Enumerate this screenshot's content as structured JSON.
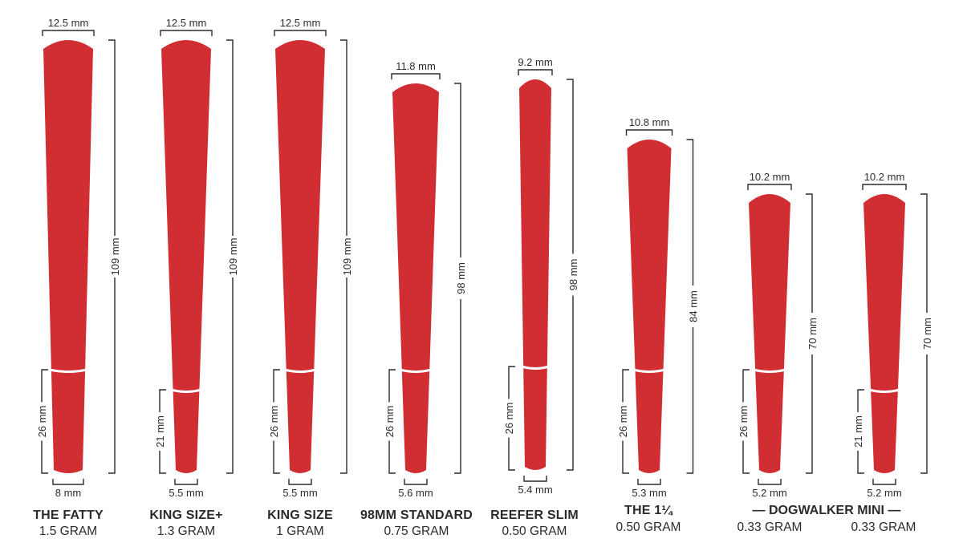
{
  "cones": [
    {
      "id": "fatty",
      "name": "THE FATTY",
      "weight": "1.5 GRAM",
      "top_diameter": "12.5 mm",
      "length": "109 mm",
      "filter_length": "26 mm",
      "tip_diameter": "8 mm"
    },
    {
      "id": "king-plus",
      "name": "KING SIZE+",
      "weight": "1.3 GRAM",
      "top_diameter": "12.5 mm",
      "length": "109 mm",
      "filter_length": "21 mm",
      "tip_diameter": "5.5 mm"
    },
    {
      "id": "king",
      "name": "KING SIZE",
      "weight": "1 GRAM",
      "top_diameter": "12.5 mm",
      "length": "109 mm",
      "filter_length": "26 mm",
      "tip_diameter": "5.5 mm"
    },
    {
      "id": "98mm",
      "name": "98MM STANDARD",
      "weight": "0.75 GRAM",
      "top_diameter": "11.8 mm",
      "length": "98 mm",
      "filter_length": "26 mm",
      "tip_diameter": "5.6 mm"
    },
    {
      "id": "reefer",
      "name": "REEFER SLIM",
      "weight": "0.50 GRAM",
      "top_diameter": "9.2 mm",
      "length": "98 mm",
      "filter_length": "26 mm",
      "tip_diameter": "5.4 mm"
    },
    {
      "id": "one-quarter",
      "name": "THE 1¼",
      "weight": "0.50 GRAM",
      "top_diameter": "10.8 mm",
      "length": "84 mm",
      "filter_length": "26 mm",
      "tip_diameter": "5.3 mm"
    },
    {
      "id": "dogwalker-a",
      "name": "",
      "weight": "0.33 GRAM",
      "top_diameter": "10.2 mm",
      "length": "70 mm",
      "filter_length": "26 mm",
      "tip_diameter": "5.2 mm"
    },
    {
      "id": "dogwalker-b",
      "name": "",
      "weight": "0.33 GRAM",
      "top_diameter": "10.2 mm",
      "length": "70 mm",
      "filter_length": "21 mm",
      "tip_diameter": "5.2 mm"
    }
  ],
  "group_label": "— DOGWALKER MINI —",
  "colors": {
    "cone": "#d12e33",
    "dimension_line": "#2b2b2b",
    "text": "#2b2b2b"
  }
}
